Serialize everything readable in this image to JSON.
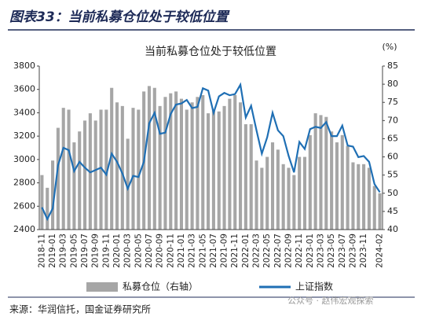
{
  "header": "图表33：当前私募仓位处于较低位置",
  "source": "来源：华润信托，国金证券研究所",
  "watermark": "公众号 · 赵伟宏观探索",
  "chart_data": {
    "type": "bar-line",
    "title": "当前私募仓位处于较低位置",
    "y2_unit": "(%)",
    "categories": [
      "2018-11",
      null,
      "2019-01",
      null,
      "2019-03",
      null,
      "2019-05",
      null,
      "2019-07",
      null,
      "2019-09",
      null,
      "2019-11",
      null,
      "2020-01",
      null,
      "2020-03",
      null,
      "2020-05",
      null,
      "2020-07",
      null,
      "2020-09",
      null,
      "2020-11",
      null,
      "2021-01",
      null,
      "2021-03",
      null,
      "2021-05",
      null,
      "2021-07",
      null,
      "2021-09",
      null,
      "2021-11",
      null,
      "2022-01",
      null,
      "2022-03",
      null,
      "2022-05",
      null,
      "2022-07",
      null,
      "2022-09",
      null,
      "2022-11",
      null,
      "2023-01",
      null,
      "2023-03",
      null,
      "2023-05",
      null,
      "2023-07",
      null,
      "2023-09",
      null,
      "2023-11",
      null,
      null,
      "2024-02"
    ],
    "series": [
      {
        "name": "私募仓位（右轴）",
        "type": "bar",
        "axis": "y2",
        "color": "#a6a6a6",
        "values": [
          55,
          51.5,
          59,
          68,
          73.5,
          73,
          64,
          67,
          70,
          72,
          70,
          73,
          73,
          79,
          75,
          74,
          65,
          73.5,
          73,
          78,
          79.5,
          79,
          74,
          76.5,
          77.5,
          78,
          76,
          73,
          75,
          76.5,
          77,
          72,
          73,
          72.5,
          74,
          76,
          77,
          75,
          69,
          69,
          59,
          57,
          60,
          64,
          62,
          58,
          57,
          55,
          60,
          60,
          66,
          72,
          71.5,
          71,
          67,
          64,
          66,
          63,
          58.5,
          58,
          58,
          57,
          52,
          50
        ]
      },
      {
        "name": "上证指数",
        "type": "line",
        "axis": "y",
        "color": "#1f6fb4",
        "values": [
          2590,
          2490,
          2580,
          2950,
          3100,
          3080,
          2900,
          2980,
          2930,
          2890,
          2910,
          2930,
          2870,
          3050,
          2980,
          2880,
          2750,
          2860,
          2850,
          2980,
          3310,
          3400,
          3220,
          3230,
          3390,
          3470,
          3480,
          3510,
          3440,
          3450,
          3610,
          3590,
          3400,
          3540,
          3570,
          3550,
          3560,
          3640,
          3360,
          3460,
          3250,
          3050,
          3190,
          3400,
          3250,
          3200,
          3030,
          2890,
          3150,
          3090,
          3260,
          3280,
          3270,
          3320,
          3200,
          3200,
          3290,
          3120,
          3110,
          3020,
          3030,
          2980,
          2790,
          2720
        ]
      }
    ],
    "ylim": [
      2400,
      3800
    ],
    "yticks": [
      2400,
      2600,
      2800,
      3000,
      3200,
      3400,
      3600,
      3800
    ],
    "y2lim": [
      40,
      85
    ],
    "y2ticks": [
      40,
      45,
      50,
      55,
      60,
      65,
      70,
      75,
      80,
      85
    ],
    "legend": "bottom"
  }
}
